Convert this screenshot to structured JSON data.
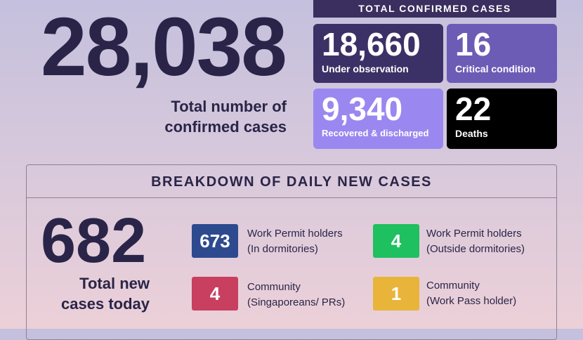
{
  "summary": {
    "total_confirmed": "28,038",
    "total_label_line1": "Total number of",
    "total_label_line2": "confirmed cases"
  },
  "confirmed_header": "TOTAL CONFIRMED CASES",
  "tiles": {
    "under_observation": {
      "value": "18,660",
      "label": "Under observation",
      "color": "#3c3166"
    },
    "critical": {
      "value": "16",
      "label": "Critical condition",
      "color": "#6c5cb6"
    },
    "recovered": {
      "value": "9,340",
      "label": "Recovered & discharged",
      "color": "#9a88f0"
    },
    "deaths": {
      "value": "22",
      "label": "Deaths",
      "color": "#000000"
    }
  },
  "breakdown": {
    "title": "BREAKDOWN OF DAILY NEW CASES",
    "total_today": "682",
    "today_label_line1": "Total new",
    "today_label_line2": "cases today",
    "categories": [
      {
        "value": "673",
        "line1": "Work Permit holders",
        "line2": "(In dormitories)",
        "color": "#2d4a8f"
      },
      {
        "value": "4",
        "line1": "Work Permit holders",
        "line2": "(Outside dormitories)",
        "color": "#1fc060"
      },
      {
        "value": "4",
        "line1": "Community",
        "line2": "(Singaporeans/ PRs)",
        "color": "#c83f60"
      },
      {
        "value": "1",
        "line1": "Community",
        "line2": "(Work Pass holder)",
        "color": "#e8b43a"
      }
    ]
  }
}
